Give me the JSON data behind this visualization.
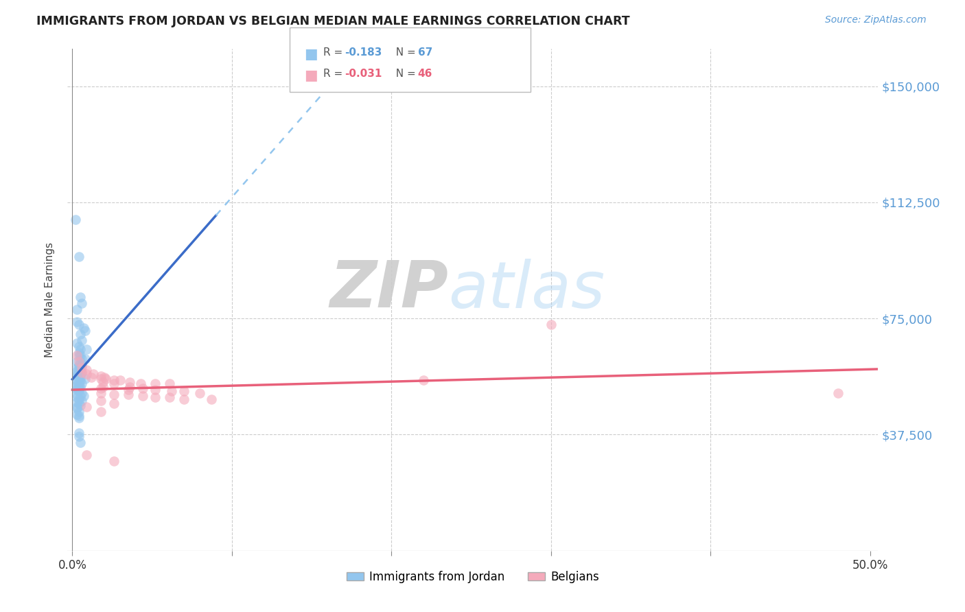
{
  "title": "IMMIGRANTS FROM JORDAN VS BELGIAN MEDIAN MALE EARNINGS CORRELATION CHART",
  "source": "Source: ZipAtlas.com",
  "ylabel": "Median Male Earnings",
  "ytick_labels": [
    "$150,000",
    "$112,500",
    "$75,000",
    "$37,500"
  ],
  "ytick_values": [
    150000,
    112500,
    75000,
    37500
  ],
  "ymin": 0,
  "ymax": 162000,
  "xmin": -0.003,
  "xmax": 0.505,
  "blue_color": "#93C6EE",
  "pink_color": "#F4AABB",
  "trendline_blue_solid": "#3B6CC8",
  "trendline_blue_dashed": "#93C6EE",
  "trendline_pink": "#E8607A",
  "background_color": "#FFFFFF",
  "watermark_zip": "ZIP",
  "watermark_atlas": "atlas",
  "blue_scatter": [
    [
      0.002,
      107000
    ],
    [
      0.004,
      95000
    ],
    [
      0.005,
      82000
    ],
    [
      0.006,
      80000
    ],
    [
      0.003,
      78000
    ],
    [
      0.003,
      74000
    ],
    [
      0.004,
      73000
    ],
    [
      0.007,
      72000
    ],
    [
      0.008,
      71000
    ],
    [
      0.005,
      70000
    ],
    [
      0.006,
      68000
    ],
    [
      0.003,
      67000
    ],
    [
      0.004,
      66000
    ],
    [
      0.005,
      65000
    ],
    [
      0.009,
      65000
    ],
    [
      0.004,
      64000
    ],
    [
      0.005,
      63000
    ],
    [
      0.004,
      63000
    ],
    [
      0.006,
      62000
    ],
    [
      0.008,
      62000
    ],
    [
      0.003,
      61000
    ],
    [
      0.005,
      61000
    ],
    [
      0.004,
      60000
    ],
    [
      0.006,
      60000
    ],
    [
      0.003,
      59000
    ],
    [
      0.004,
      59000
    ],
    [
      0.005,
      58500
    ],
    [
      0.003,
      58000
    ],
    [
      0.004,
      58000
    ],
    [
      0.006,
      57500
    ],
    [
      0.003,
      57000
    ],
    [
      0.005,
      57000
    ],
    [
      0.003,
      56500
    ],
    [
      0.004,
      56000
    ],
    [
      0.005,
      56000
    ],
    [
      0.008,
      55500
    ],
    [
      0.003,
      55000
    ],
    [
      0.005,
      55000
    ],
    [
      0.003,
      54500
    ],
    [
      0.004,
      54000
    ],
    [
      0.006,
      54000
    ],
    [
      0.003,
      53500
    ],
    [
      0.004,
      53000
    ],
    [
      0.005,
      53000
    ],
    [
      0.003,
      52500
    ],
    [
      0.004,
      52000
    ],
    [
      0.003,
      52000
    ],
    [
      0.004,
      51500
    ],
    [
      0.006,
      51000
    ],
    [
      0.003,
      50500
    ],
    [
      0.005,
      50000
    ],
    [
      0.007,
      50000
    ],
    [
      0.003,
      49500
    ],
    [
      0.004,
      49000
    ],
    [
      0.006,
      48500
    ],
    [
      0.003,
      48000
    ],
    [
      0.004,
      47500
    ],
    [
      0.005,
      47000
    ],
    [
      0.003,
      46500
    ],
    [
      0.003,
      46000
    ],
    [
      0.004,
      45000
    ],
    [
      0.003,
      44000
    ],
    [
      0.004,
      43500
    ],
    [
      0.004,
      43000
    ],
    [
      0.004,
      38000
    ],
    [
      0.004,
      37000
    ],
    [
      0.005,
      35000
    ]
  ],
  "pink_scatter": [
    [
      0.003,
      63000
    ],
    [
      0.004,
      61000
    ],
    [
      0.006,
      59000
    ],
    [
      0.006,
      57500
    ],
    [
      0.009,
      58500
    ],
    [
      0.009,
      57000
    ],
    [
      0.013,
      57000
    ],
    [
      0.012,
      56000
    ],
    [
      0.018,
      56500
    ],
    [
      0.02,
      56000
    ],
    [
      0.018,
      55500
    ],
    [
      0.021,
      55500
    ],
    [
      0.026,
      55000
    ],
    [
      0.03,
      55000
    ],
    [
      0.019,
      54500
    ],
    [
      0.026,
      54000
    ],
    [
      0.036,
      54500
    ],
    [
      0.043,
      54000
    ],
    [
      0.052,
      54000
    ],
    [
      0.061,
      54000
    ],
    [
      0.019,
      53000
    ],
    [
      0.036,
      53000
    ],
    [
      0.044,
      52500
    ],
    [
      0.052,
      52000
    ],
    [
      0.018,
      52500
    ],
    [
      0.035,
      52000
    ],
    [
      0.062,
      51500
    ],
    [
      0.07,
      51500
    ],
    [
      0.08,
      51000
    ],
    [
      0.018,
      51000
    ],
    [
      0.026,
      50500
    ],
    [
      0.035,
      50500
    ],
    [
      0.044,
      50000
    ],
    [
      0.052,
      49500
    ],
    [
      0.061,
      49500
    ],
    [
      0.07,
      49000
    ],
    [
      0.087,
      49000
    ],
    [
      0.018,
      48500
    ],
    [
      0.026,
      47500
    ],
    [
      0.009,
      46500
    ],
    [
      0.018,
      45000
    ],
    [
      0.009,
      31000
    ],
    [
      0.026,
      29000
    ],
    [
      0.3,
      73000
    ],
    [
      0.22,
      55000
    ],
    [
      0.48,
      51000
    ]
  ]
}
